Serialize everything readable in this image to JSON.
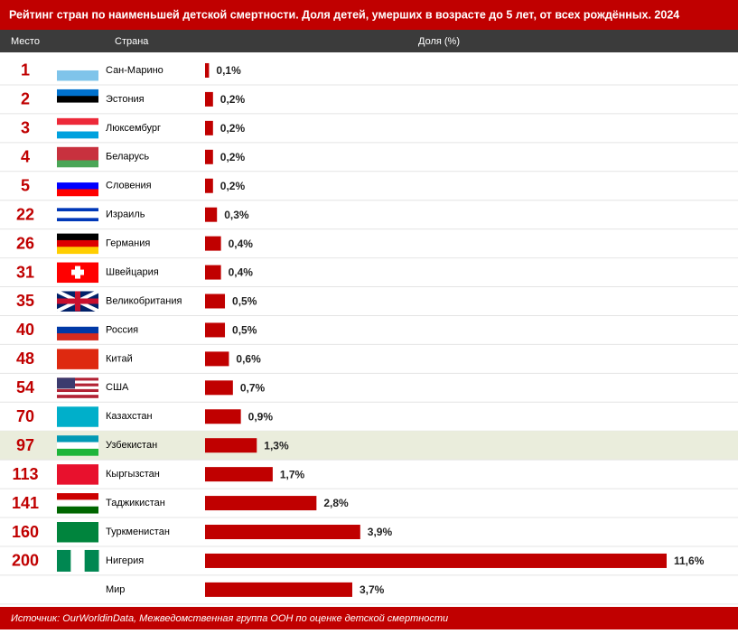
{
  "chart_data": {
    "type": "bar",
    "orientation": "horizontal",
    "title": "Рейтинг стран по наименьшей детской смертности. Доля детей, умерших в возрасте до 5 лет, от всех рождённых. 2024",
    "columns": [
      "Место",
      "Страна",
      "Доля (%)"
    ],
    "ranks": [
      1,
      2,
      3,
      4,
      5,
      22,
      26,
      31,
      35,
      40,
      48,
      54,
      70,
      97,
      113,
      141,
      160,
      200,
      null
    ],
    "categories": [
      "Сан-Марино",
      "Эстония",
      "Люксембург",
      "Беларусь",
      "Словения",
      "Израиль",
      "Германия",
      "Швейцария",
      "Великобритания",
      "Россия",
      "Китай",
      "США",
      "Казахстан",
      "Узбекистан",
      "Кыргызстан",
      "Таджикистан",
      "Туркменистан",
      "Нигерия",
      "Мир"
    ],
    "values": [
      0.1,
      0.2,
      0.2,
      0.2,
      0.2,
      0.3,
      0.4,
      0.4,
      0.5,
      0.5,
      0.6,
      0.7,
      0.9,
      1.3,
      1.7,
      2.8,
      3.9,
      11.6,
      3.7
    ],
    "value_labels": [
      "0,1%",
      "0,2%",
      "0,2%",
      "0,2%",
      "0,2%",
      "0,3%",
      "0,4%",
      "0,4%",
      "0,5%",
      "0,5%",
      "0,6%",
      "0,7%",
      "0,9%",
      "1,3%",
      "1,7%",
      "2,8%",
      "3,9%",
      "11,6%",
      "3,7%"
    ],
    "color": "#c00000",
    "highlight": "Узбекистан",
    "highlight_color": "#eaeddc",
    "source": "Источник: OurWorldinData, Межведомственная группа ООН по оценке детской смертности"
  }
}
